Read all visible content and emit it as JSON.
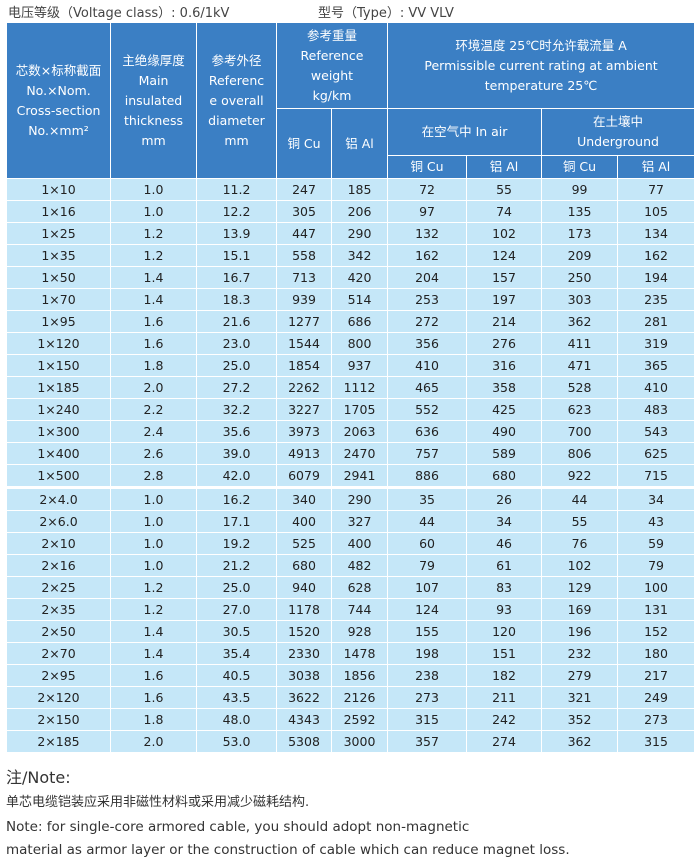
{
  "header": {
    "voltage": "电压等级（Voltage class）: 0.6/1kV",
    "type": "型号（Type）: VV  VLV"
  },
  "table": {
    "head": {
      "core": [
        "芯数×标称截面",
        "No.×Nom.",
        "Cross-section",
        "No.×mm²"
      ],
      "insulation": [
        "主绝缘厚度",
        "Main",
        "insulated",
        "thickness",
        "mm"
      ],
      "diameter": [
        "参考外径",
        "Referenc",
        "e overall",
        "diameter",
        "mm"
      ],
      "weight": [
        "参考重量",
        "Reference",
        "weight",
        "kg/km"
      ],
      "weight_cu": "铜 Cu",
      "weight_al": "铝 Al",
      "current": [
        "环境温度 25℃时允许载流量   A",
        "Permissible current rating at ambient",
        "temperature 25℃"
      ],
      "air": "在空气中 In air",
      "underground": [
        "在土壤中",
        "Underground"
      ],
      "air_cu": "铜 Cu",
      "air_al": "铝 Al",
      "ground_cu": "铜 Cu",
      "ground_al": "铝 Al"
    },
    "groups": [
      [
        [
          "1×10",
          "1.0",
          "11.2",
          "247",
          "185",
          "72",
          "55",
          "99",
          "77"
        ],
        [
          "1×16",
          "1.0",
          "12.2",
          "305",
          "206",
          "97",
          "74",
          "135",
          "105"
        ],
        [
          "1×25",
          "1.2",
          "13.9",
          "447",
          "290",
          "132",
          "102",
          "173",
          "134"
        ],
        [
          "1×35",
          "1.2",
          "15.1",
          "558",
          "342",
          "162",
          "124",
          "209",
          "162"
        ],
        [
          "1×50",
          "1.4",
          "16.7",
          "713",
          "420",
          "204",
          "157",
          "250",
          "194"
        ],
        [
          "1×70",
          "1.4",
          "18.3",
          "939",
          "514",
          "253",
          "197",
          "303",
          "235"
        ],
        [
          "1×95",
          "1.6",
          "21.6",
          "1277",
          "686",
          "272",
          "214",
          "362",
          "281"
        ],
        [
          "1×120",
          "1.6",
          "23.0",
          "1544",
          "800",
          "356",
          "276",
          "411",
          "319"
        ],
        [
          "1×150",
          "1.8",
          "25.0",
          "1854",
          "937",
          "410",
          "316",
          "471",
          "365"
        ],
        [
          "1×185",
          "2.0",
          "27.2",
          "2262",
          "1112",
          "465",
          "358",
          "528",
          "410"
        ],
        [
          "1×240",
          "2.2",
          "32.2",
          "3227",
          "1705",
          "552",
          "425",
          "623",
          "483"
        ],
        [
          "1×300",
          "2.4",
          "35.6",
          "3973",
          "2063",
          "636",
          "490",
          "700",
          "543"
        ],
        [
          "1×400",
          "2.6",
          "39.0",
          "4913",
          "2470",
          "757",
          "589",
          "806",
          "625"
        ],
        [
          "1×500",
          "2.8",
          "42.0",
          "6079",
          "2941",
          "886",
          "680",
          "922",
          "715"
        ]
      ],
      [
        [
          "2×4.0",
          "1.0",
          "16.2",
          "340",
          "290",
          "35",
          "26",
          "44",
          "34"
        ],
        [
          "2×6.0",
          "1.0",
          "17.1",
          "400",
          "327",
          "44",
          "34",
          "55",
          "43"
        ],
        [
          "2×10",
          "1.0",
          "19.2",
          "525",
          "400",
          "60",
          "46",
          "76",
          "59"
        ],
        [
          "2×16",
          "1.0",
          "21.2",
          "680",
          "482",
          "79",
          "61",
          "102",
          "79"
        ],
        [
          "2×25",
          "1.2",
          "25.0",
          "940",
          "628",
          "107",
          "83",
          "129",
          "100"
        ],
        [
          "2×35",
          "1.2",
          "27.0",
          "1178",
          "744",
          "124",
          "93",
          "169",
          "131"
        ],
        [
          "2×50",
          "1.4",
          "30.5",
          "1520",
          "928",
          "155",
          "120",
          "196",
          "152"
        ],
        [
          "2×70",
          "1.4",
          "35.4",
          "2330",
          "1478",
          "198",
          "151",
          "232",
          "180"
        ],
        [
          "2×95",
          "1.6",
          "40.5",
          "3038",
          "1856",
          "238",
          "182",
          "279",
          "217"
        ],
        [
          "2×120",
          "1.6",
          "43.5",
          "3622",
          "2126",
          "273",
          "211",
          "321",
          "249"
        ],
        [
          "2×150",
          "1.8",
          "48.0",
          "4343",
          "2592",
          "315",
          "242",
          "352",
          "273"
        ],
        [
          "2×185",
          "2.0",
          "53.0",
          "5308",
          "3000",
          "357",
          "274",
          "362",
          "315"
        ]
      ]
    ]
  },
  "note": {
    "title": "注/Note:",
    "zh": "单芯电缆铠装应采用非磁性材料或采用减少磁耗结构.",
    "en": [
      "Note: for single-core armored cable, you should adopt non-magnetic",
      "material as armor layer or the construction of cable which can reduce magnet loss."
    ]
  }
}
